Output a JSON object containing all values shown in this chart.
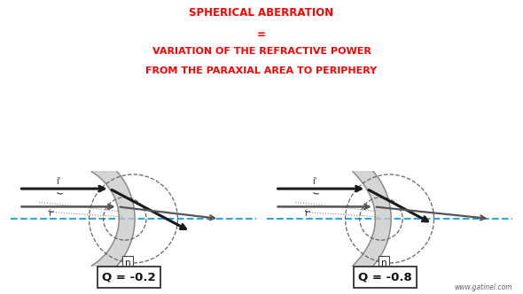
{
  "title_line1": "SPHERICAL ABERRATION",
  "title_line2": "=",
  "title_line3": "VARIATION OF THE REFRACTIVE POWER",
  "title_line4": "FROM THE PARAXIAL AREA TO PERIPHERY",
  "title_color": "#ff0000",
  "bg_color": "#ffffff",
  "q_label_left": "Q = -0.2",
  "q_label_right": "Q = -0.8",
  "watermark": "www.gatinel.com",
  "optical_axis_color": "#29a8e0",
  "dashed_color": "#666666"
}
